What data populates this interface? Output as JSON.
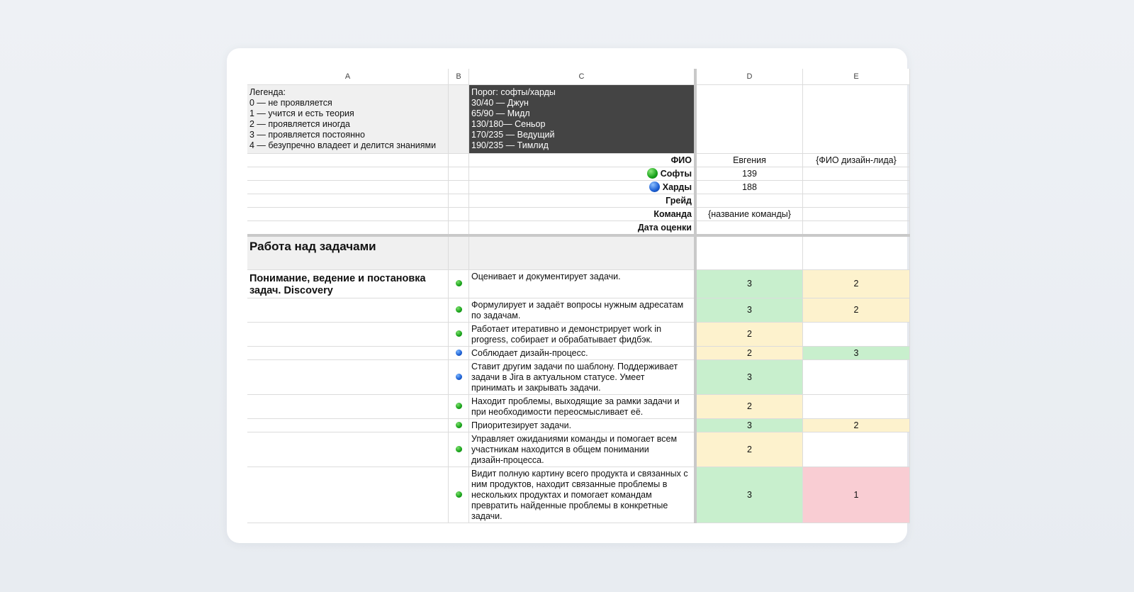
{
  "columns": [
    "A",
    "B",
    "C",
    "D",
    "E"
  ],
  "legend": {
    "title": "Легенда:",
    "items": [
      "0 — не проявляется",
      "1 — учится и есть теория",
      "2 — проявляется иногда",
      "3 — проявляется постоянно",
      "4 — безупречно владеет и делится знаниями"
    ]
  },
  "threshold": {
    "title": "Порог: софты/харды",
    "items": [
      "30/40 — Джун",
      "65/90 — Мидл",
      "130/180— Сеньор",
      "170/235 — Ведущий",
      "190/235 — Тимлид"
    ]
  },
  "info": {
    "fio_label": "ФИО",
    "fio_d": "Евгения",
    "fio_e": "{ФИО дизайн-лида}",
    "soft_label": "Софты",
    "soft_d": "139",
    "hard_label": "Харды",
    "hard_d": "188",
    "grade_label": "Грейд",
    "team_label": "Команда",
    "team_d": "{название команды}",
    "date_label": "Дата оценки"
  },
  "section": {
    "title": "Работа над задачами",
    "group": "Понимание, ведение и постановка задач. Discovery"
  },
  "rows": [
    {
      "type": "soft",
      "lines": [
        "Оценивает и документирует задачи."
      ],
      "d": "3",
      "e": "2"
    },
    {
      "type": "soft",
      "lines": [
        "Формулирует и задаёт вопросы нужным адресатам",
        "по задачам."
      ],
      "d": "3",
      "e": "2"
    },
    {
      "type": "soft",
      "lines": [
        "Работает итеративно и демонстрирует work in",
        "progress, собирает и обрабатывает фидбэк."
      ],
      "d": "2",
      "e": ""
    },
    {
      "type": "hard",
      "lines": [
        "Соблюдает дизайн-процесс."
      ],
      "d": "2",
      "e": "3"
    },
    {
      "type": "hard",
      "lines": [
        "Ставит другим задачи по шаблону. Поддерживает",
        "задачи в Jira в актуальном статусе. Умеет",
        "принимать и закрывать задачи."
      ],
      "d": "3",
      "e": ""
    },
    {
      "type": "soft",
      "lines": [
        "Находит проблемы, выходящие за рамки задачи и",
        "при необходимости переосмысливает её."
      ],
      "d": "2",
      "e": ""
    },
    {
      "type": "soft",
      "lines": [
        "Приоритезирует задачи."
      ],
      "d": "3",
      "e": "2"
    },
    {
      "type": "soft",
      "lines": [
        "Управляет ожиданиями команды и помогает всем",
        "участникам находится в общем понимании",
        "дизайн-процесса."
      ],
      "d": "2",
      "e": ""
    },
    {
      "type": "soft",
      "lines": [
        "Видит полную картину всего продукта и связанных с",
        "ним продуктов, находит связанные проблемы в",
        "нескольких продуктах и помогает командам",
        "превратить найденные проблемы в конкретные",
        "задачи."
      ],
      "d": "3",
      "e": "1"
    }
  ],
  "colors": {
    "score_3": "#c8efcd",
    "score_2": "#fdf2cd",
    "score_1": "#f9cdd3",
    "soft_dot": "#18a21a",
    "hard_dot": "#1c5fd4",
    "threshold_bg": "#444444"
  }
}
